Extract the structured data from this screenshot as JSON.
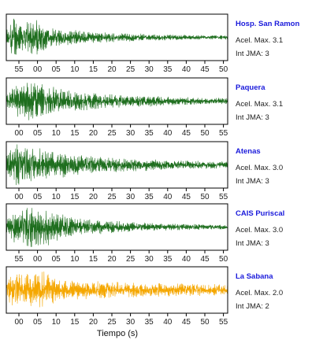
{
  "chart_data": {
    "type": "line",
    "xlabel": "Tiempo (s)",
    "series": [
      {
        "name": "Hosp. San Ramon",
        "color": "#1e6e1e",
        "ticks": [
          "55",
          "00",
          "05",
          "10",
          "15",
          "20",
          "25",
          "30",
          "35",
          "40",
          "45",
          "50"
        ],
        "acel_label": "Acel. Max. 3.1",
        "int_label": "Int JMA: 3",
        "envelope": [
          [
            0,
            0.35
          ],
          [
            0.1,
            1.0
          ],
          [
            0.25,
            0.75
          ],
          [
            0.4,
            0.9
          ],
          [
            0.55,
            0.5
          ],
          [
            0.8,
            0.38
          ],
          [
            1.2,
            0.27
          ],
          [
            1.6,
            0.2
          ],
          [
            2.0,
            0.16
          ],
          [
            2.5,
            0.12
          ],
          [
            3.0,
            0.1
          ]
        ]
      },
      {
        "name": "Paquera",
        "color": "#1e6e1e",
        "ticks": [
          "00",
          "05",
          "10",
          "15",
          "20",
          "25",
          "30",
          "35",
          "40",
          "45",
          "50",
          "55"
        ],
        "acel_label": "Acel. Max. 3.1",
        "int_label": "Int JMA: 3",
        "envelope": [
          [
            0,
            0.25
          ],
          [
            0.1,
            0.75
          ],
          [
            0.3,
            1.0
          ],
          [
            0.5,
            0.8
          ],
          [
            0.75,
            0.6
          ],
          [
            1.0,
            0.45
          ],
          [
            1.5,
            0.32
          ],
          [
            2.0,
            0.25
          ],
          [
            2.5,
            0.18
          ],
          [
            3.0,
            0.14
          ]
        ]
      },
      {
        "name": "Atenas",
        "color": "#1e6e1e",
        "ticks": [
          "00",
          "05",
          "10",
          "15",
          "20",
          "25",
          "30",
          "35",
          "40",
          "45",
          "50",
          "55"
        ],
        "acel_label": "Acel. Max. 3.0",
        "int_label": "Int JMA: 3",
        "envelope": [
          [
            0,
            0.55
          ],
          [
            0.1,
            1.0
          ],
          [
            0.35,
            0.85
          ],
          [
            0.6,
            0.7
          ],
          [
            0.9,
            0.55
          ],
          [
            1.3,
            0.4
          ],
          [
            1.8,
            0.3
          ],
          [
            2.3,
            0.22
          ],
          [
            3.0,
            0.16
          ]
        ]
      },
      {
        "name": "CAIS Puriscal",
        "color": "#1e6e1e",
        "ticks": [
          "55",
          "00",
          "05",
          "10",
          "15",
          "20",
          "25",
          "30",
          "35",
          "40",
          "45",
          "50"
        ],
        "acel_label": "Acel. Max. 3.0",
        "int_label": "Int JMA: 3",
        "envelope": [
          [
            0,
            0.3
          ],
          [
            0.12,
            0.85
          ],
          [
            0.35,
            1.0
          ],
          [
            0.55,
            0.9
          ],
          [
            0.8,
            0.55
          ],
          [
            1.1,
            0.4
          ],
          [
            1.5,
            0.28
          ],
          [
            2.0,
            0.2
          ],
          [
            2.5,
            0.14
          ],
          [
            3.0,
            0.1
          ]
        ]
      },
      {
        "name": "La Sabana",
        "color": "#f5a700",
        "ticks": [
          "00",
          "05",
          "10",
          "15",
          "20",
          "25",
          "30",
          "35",
          "40",
          "45",
          "50",
          "55"
        ],
        "acel_label": "Acel. Max. 2.0",
        "int_label": "Int JMA: 2",
        "envelope": [
          [
            0,
            0.4
          ],
          [
            0.1,
            0.95
          ],
          [
            0.25,
            0.7
          ],
          [
            0.45,
            1.0
          ],
          [
            0.7,
            0.5
          ],
          [
            1.0,
            0.45
          ],
          [
            1.5,
            0.38
          ],
          [
            2.0,
            0.33
          ],
          [
            2.5,
            0.3
          ],
          [
            3.0,
            0.28
          ]
        ]
      }
    ]
  }
}
